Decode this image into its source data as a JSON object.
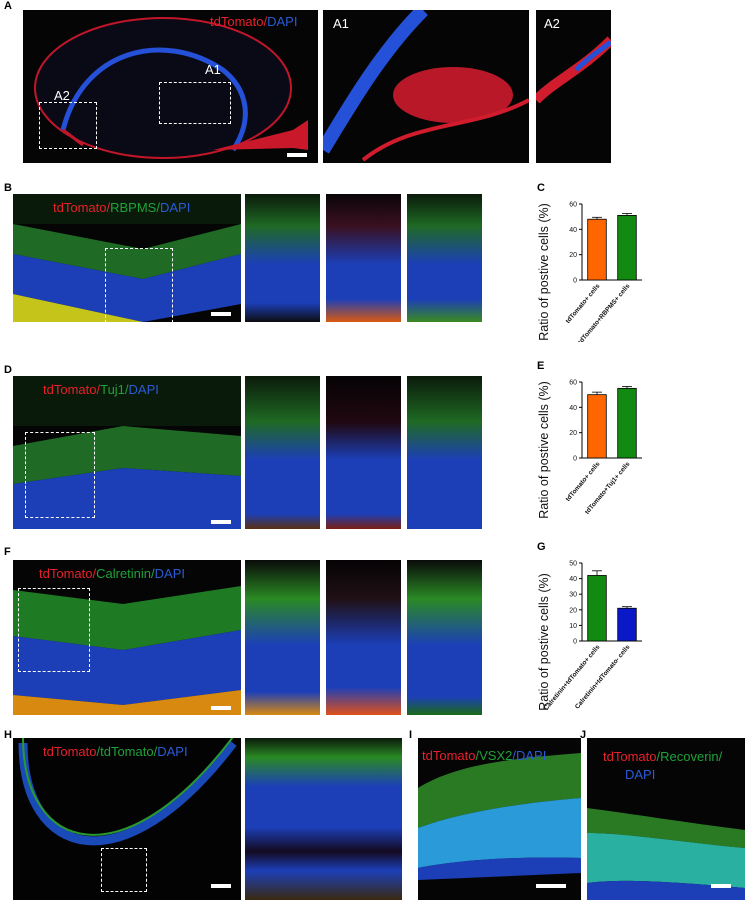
{
  "panel_labels": {
    "A": "A",
    "B": "B",
    "C": "C",
    "D": "D",
    "E": "E",
    "F": "F",
    "G": "G",
    "H": "H",
    "I": "I",
    "J": "J"
  },
  "panel_A": {
    "title_red": "tdTomato",
    "title_sep": "/",
    "title_blue": "DAPI",
    "box1_label": "A1",
    "box2_label": "A2",
    "inset1_label": "A1",
    "inset2_label": "A2"
  },
  "panel_B": {
    "m1": "tdTomato",
    "s1": "/",
    "m2": "RBPMS",
    "s2": "/",
    "m3": "DAPI"
  },
  "panel_D": {
    "m1": "tdTomato",
    "s1": "/",
    "m2": "Tuj1",
    "s2": "/",
    "m3": "DAPI"
  },
  "panel_F": {
    "m1": "tdTomato",
    "s1": "/",
    "m2": "Calretinin",
    "s2": "/",
    "m3": "DAPI"
  },
  "panel_H": {
    "m1": "tdTomato",
    "s1": "/",
    "m2": "tdTomato",
    "s2": "/",
    "m3": "DAPI"
  },
  "panel_I": {
    "m1": "tdTomato",
    "s1": "/",
    "m2": "VSX2",
    "s2": "/",
    "m3": "DAPI"
  },
  "panel_J": {
    "m1": "tdTomato",
    "s1": "/",
    "m2": "Recoverin",
    "s2": "/",
    "m3": "DAPI"
  },
  "colors": {
    "red": "#e8202a",
    "green": "#1fa23a",
    "blue": "#2a5bd6",
    "orange": "#ff6600",
    "bar_green": "#128a12",
    "bar_blue": "#0a18c8"
  },
  "chart_data": [
    {
      "panel": "C",
      "type": "bar",
      "ylabel": "Ratio of postive cells (%)",
      "ylim": [
        0,
        60
      ],
      "yticks": [
        0,
        20,
        40,
        60
      ],
      "categories": [
        "tdTomato+ cells",
        "tdTomato+RBPMS+ cells"
      ],
      "values": [
        48,
        51
      ],
      "errors": [
        1.5,
        1.5
      ],
      "bar_colors": [
        "#ff6600",
        "#128a12"
      ]
    },
    {
      "panel": "E",
      "type": "bar",
      "ylabel": "Ratio of postive cells (%)",
      "ylim": [
        0,
        60
      ],
      "yticks": [
        0,
        20,
        40,
        60
      ],
      "categories": [
        "tdTomato+ cells",
        "tdTomato+Tuj1+ cells"
      ],
      "values": [
        50,
        55
      ],
      "errors": [
        2,
        1.5
      ],
      "bar_colors": [
        "#ff6600",
        "#128a12"
      ]
    },
    {
      "panel": "G",
      "type": "bar",
      "ylabel": "Ratio of postive cells (%)",
      "ylim": [
        0,
        50
      ],
      "yticks": [
        0,
        10,
        20,
        30,
        40,
        50
      ],
      "categories": [
        "Calretinin+tdTomato+ cells",
        "Calretinin+tdTomato- cells"
      ],
      "values": [
        42,
        21
      ],
      "errors": [
        3,
        1
      ],
      "bar_colors": [
        "#128a12",
        "#0a18c8"
      ]
    }
  ]
}
